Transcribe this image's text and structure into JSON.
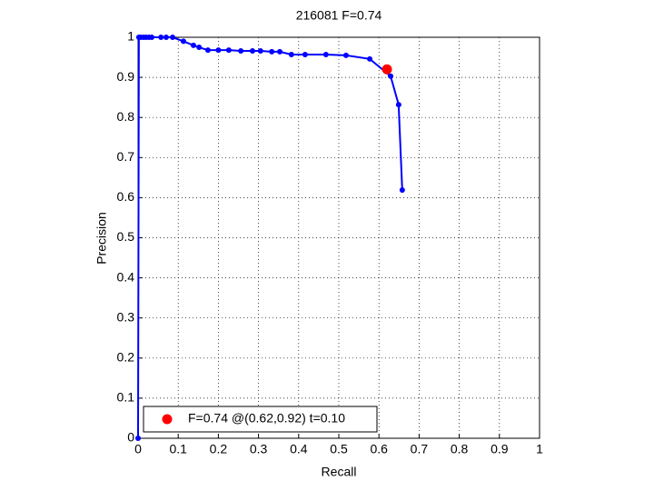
{
  "chart_data": {
    "type": "line",
    "title": "216081 F=0.74",
    "x_label": "Recall",
    "y_label": "Precision",
    "xlim": [
      0,
      1
    ],
    "ylim": [
      0,
      1
    ],
    "xticks": [
      0,
      0.1,
      0.2,
      0.3,
      0.4,
      0.5,
      0.6,
      0.7,
      0.8,
      0.9,
      1
    ],
    "yticks": [
      0,
      0.1,
      0.2,
      0.3,
      0.4,
      0.5,
      0.6,
      0.7,
      0.8,
      0.9,
      1
    ],
    "grid": true,
    "legend_location": "lower left",
    "series": [
      {
        "color": "#0000ff",
        "x": [
          0,
          0.002,
          0.007,
          0.014,
          0.02,
          0.027,
          0.034,
          0.057,
          0.07,
          0.086,
          0.113,
          0.138,
          0.152,
          0.174,
          0.2,
          0.226,
          0.256,
          0.285,
          0.305,
          0.333,
          0.353,
          0.382,
          0.416,
          0.468,
          0.518,
          0.577,
          0.629,
          0.649,
          0.658
        ],
        "values": [
          0,
          1,
          1,
          1,
          1,
          1,
          1,
          1,
          1,
          1,
          0.99,
          0.98,
          0.975,
          0.968,
          0.968,
          0.968,
          0.966,
          0.966,
          0.966,
          0.964,
          0.964,
          0.957,
          0.957,
          0.957,
          0.955,
          0.946,
          0.903,
          0.832,
          0.619
        ]
      },
      {
        "name": "F=0.74 @(0.62,0.92) t=0.10",
        "color": "#ff0000",
        "x": [
          0.62
        ],
        "values": [
          0.92
        ]
      }
    ]
  }
}
